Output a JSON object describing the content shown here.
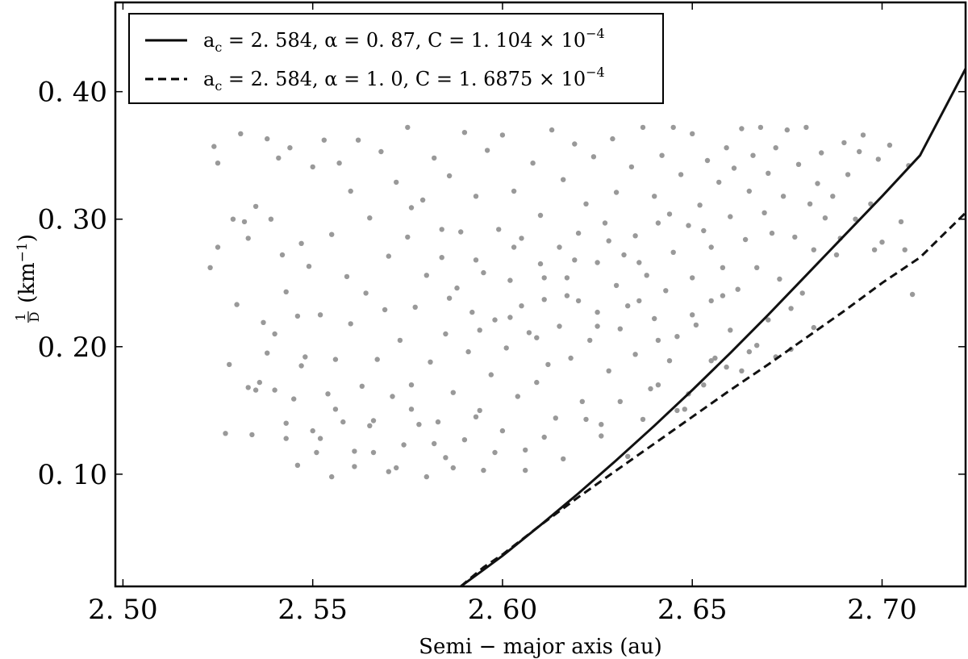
{
  "chart_data": {
    "type": "scatter",
    "xlabel": "Semi − major axis (au)",
    "ylabel": "km",
    "ylabel_prefix": "1",
    "ylabel_denominator": "D",
    "ylabel_superscript": "−1",
    "xlim": [
      2.498,
      2.722
    ],
    "ylim": [
      0.012,
      0.47
    ],
    "xticks": [
      2.5,
      2.55,
      2.6,
      2.65,
      2.7
    ],
    "xtick_labels": [
      "2. 50",
      "2. 55",
      "2. 60",
      "2. 65",
      "2. 70"
    ],
    "yticks": [
      0.1,
      0.2,
      0.3,
      0.4
    ],
    "ytick_labels": [
      "0. 10",
      "0. 20",
      "0. 30",
      "0. 40"
    ],
    "grid": false,
    "legend_position": "top-left",
    "series": [
      {
        "kind": "scatter",
        "color": "#999999",
        "points": [
          [
            2.523,
            0.262
          ],
          [
            2.524,
            0.357
          ],
          [
            2.525,
            0.344
          ],
          [
            2.525,
            0.278
          ],
          [
            2.527,
            0.132
          ],
          [
            2.528,
            0.186
          ],
          [
            2.529,
            0.3
          ],
          [
            2.53,
            0.233
          ],
          [
            2.531,
            0.367
          ],
          [
            2.532,
            0.298
          ],
          [
            2.533,
            0.285
          ],
          [
            2.534,
            0.131
          ],
          [
            2.535,
            0.166
          ],
          [
            2.535,
            0.31
          ],
          [
            2.536,
            0.172
          ],
          [
            2.537,
            0.219
          ],
          [
            2.538,
            0.363
          ],
          [
            2.539,
            0.3
          ],
          [
            2.54,
            0.166
          ],
          [
            2.54,
            0.21
          ],
          [
            2.541,
            0.348
          ],
          [
            2.542,
            0.272
          ],
          [
            2.543,
            0.128
          ],
          [
            2.543,
            0.243
          ],
          [
            2.544,
            0.356
          ],
          [
            2.545,
            0.159
          ],
          [
            2.546,
            0.107
          ],
          [
            2.546,
            0.224
          ],
          [
            2.547,
            0.281
          ],
          [
            2.548,
            0.192
          ],
          [
            2.549,
            0.263
          ],
          [
            2.55,
            0.134
          ],
          [
            2.55,
            0.341
          ],
          [
            2.551,
            0.117
          ],
          [
            2.552,
            0.225
          ],
          [
            2.553,
            0.362
          ],
          [
            2.554,
            0.163
          ],
          [
            2.555,
            0.098
          ],
          [
            2.555,
            0.288
          ],
          [
            2.556,
            0.19
          ],
          [
            2.557,
            0.344
          ],
          [
            2.558,
            0.141
          ],
          [
            2.559,
            0.255
          ],
          [
            2.56,
            0.322
          ],
          [
            2.56,
            0.218
          ],
          [
            2.561,
            0.106
          ],
          [
            2.562,
            0.362
          ],
          [
            2.563,
            0.169
          ],
          [
            2.564,
            0.242
          ],
          [
            2.565,
            0.138
          ],
          [
            2.565,
            0.301
          ],
          [
            2.566,
            0.117
          ],
          [
            2.567,
            0.19
          ],
          [
            2.568,
            0.353
          ],
          [
            2.569,
            0.229
          ],
          [
            2.57,
            0.102
          ],
          [
            2.57,
            0.271
          ],
          [
            2.571,
            0.161
          ],
          [
            2.572,
            0.329
          ],
          [
            2.573,
            0.205
          ],
          [
            2.574,
            0.123
          ],
          [
            2.575,
            0.286
          ],
          [
            2.575,
            0.372
          ],
          [
            2.576,
            0.17
          ],
          [
            2.577,
            0.231
          ],
          [
            2.578,
            0.139
          ],
          [
            2.579,
            0.315
          ],
          [
            2.58,
            0.098
          ],
          [
            2.58,
            0.256
          ],
          [
            2.581,
            0.188
          ],
          [
            2.582,
            0.348
          ],
          [
            2.583,
            0.141
          ],
          [
            2.584,
            0.27
          ],
          [
            2.585,
            0.21
          ],
          [
            2.585,
            0.113
          ],
          [
            2.586,
            0.334
          ],
          [
            2.587,
            0.164
          ],
          [
            2.588,
            0.246
          ],
          [
            2.589,
            0.29
          ],
          [
            2.59,
            0.127
          ],
          [
            2.59,
            0.368
          ],
          [
            2.591,
            0.196
          ],
          [
            2.592,
            0.227
          ],
          [
            2.593,
            0.318
          ],
          [
            2.594,
            0.15
          ],
          [
            2.595,
            0.103
          ],
          [
            2.595,
            0.258
          ],
          [
            2.596,
            0.354
          ],
          [
            2.597,
            0.178
          ],
          [
            2.598,
            0.221
          ],
          [
            2.599,
            0.292
          ],
          [
            2.6,
            0.134
          ],
          [
            2.6,
            0.366
          ],
          [
            2.601,
            0.199
          ],
          [
            2.602,
            0.252
          ],
          [
            2.603,
            0.322
          ],
          [
            2.604,
            0.161
          ],
          [
            2.605,
            0.232
          ],
          [
            2.605,
            0.285
          ],
          [
            2.606,
            0.119
          ],
          [
            2.607,
            0.211
          ],
          [
            2.608,
            0.344
          ],
          [
            2.609,
            0.172
          ],
          [
            2.61,
            0.265
          ],
          [
            2.61,
            0.303
          ],
          [
            2.611,
            0.237
          ],
          [
            2.612,
            0.186
          ],
          [
            2.613,
            0.37
          ],
          [
            2.614,
            0.144
          ],
          [
            2.615,
            0.278
          ],
          [
            2.615,
            0.216
          ],
          [
            2.616,
            0.331
          ],
          [
            2.617,
            0.254
          ],
          [
            2.618,
            0.191
          ],
          [
            2.619,
            0.359
          ],
          [
            2.62,
            0.236
          ],
          [
            2.62,
            0.289
          ],
          [
            2.621,
            0.157
          ],
          [
            2.622,
            0.312
          ],
          [
            2.623,
            0.205
          ],
          [
            2.624,
            0.349
          ],
          [
            2.625,
            0.266
          ],
          [
            2.625,
            0.227
          ],
          [
            2.626,
            0.139
          ],
          [
            2.627,
            0.297
          ],
          [
            2.628,
            0.181
          ],
          [
            2.629,
            0.363
          ],
          [
            2.63,
            0.248
          ],
          [
            2.63,
            0.321
          ],
          [
            2.631,
            0.214
          ],
          [
            2.632,
            0.272
          ],
          [
            2.633,
            0.114
          ],
          [
            2.634,
            0.341
          ],
          [
            2.635,
            0.194
          ],
          [
            2.635,
            0.287
          ],
          [
            2.636,
            0.236
          ],
          [
            2.637,
            0.372
          ],
          [
            2.638,
            0.256
          ],
          [
            2.639,
            0.167
          ],
          [
            2.64,
            0.318
          ],
          [
            2.64,
            0.222
          ],
          [
            2.641,
            0.297
          ],
          [
            2.642,
            0.35
          ],
          [
            2.643,
            0.244
          ],
          [
            2.644,
            0.189
          ],
          [
            2.645,
            0.372
          ],
          [
            2.645,
            0.274
          ],
          [
            2.646,
            0.208
          ],
          [
            2.647,
            0.335
          ],
          [
            2.648,
            0.151
          ],
          [
            2.649,
            0.295
          ],
          [
            2.65,
            0.254
          ],
          [
            2.65,
            0.367
          ],
          [
            2.651,
            0.217
          ],
          [
            2.652,
            0.311
          ],
          [
            2.653,
            0.17
          ],
          [
            2.654,
            0.346
          ],
          [
            2.655,
            0.278
          ],
          [
            2.655,
            0.236
          ],
          [
            2.656,
            0.191
          ],
          [
            2.657,
            0.329
          ],
          [
            2.658,
            0.262
          ],
          [
            2.659,
            0.356
          ],
          [
            2.66,
            0.302
          ],
          [
            2.66,
            0.213
          ],
          [
            2.661,
            0.34
          ],
          [
            2.662,
            0.245
          ],
          [
            2.663,
            0.371
          ],
          [
            2.664,
            0.284
          ],
          [
            2.665,
            0.322
          ],
          [
            2.665,
            0.196
          ],
          [
            2.666,
            0.35
          ],
          [
            2.667,
            0.262
          ],
          [
            2.668,
            0.372
          ],
          [
            2.669,
            0.305
          ],
          [
            2.67,
            0.336
          ],
          [
            2.67,
            0.221
          ],
          [
            2.671,
            0.289
          ],
          [
            2.672,
            0.356
          ],
          [
            2.673,
            0.253
          ],
          [
            2.674,
            0.318
          ],
          [
            2.675,
            0.37
          ],
          [
            2.676,
            0.198
          ],
          [
            2.677,
            0.286
          ],
          [
            2.678,
            0.343
          ],
          [
            2.679,
            0.242
          ],
          [
            2.68,
            0.372
          ],
          [
            2.681,
            0.312
          ],
          [
            2.682,
            0.276
          ],
          [
            2.683,
            0.328
          ],
          [
            2.684,
            0.352
          ],
          [
            2.685,
            0.301
          ],
          [
            2.687,
            0.318
          ],
          [
            2.688,
            0.272
          ],
          [
            2.69,
            0.36
          ],
          [
            2.691,
            0.335
          ],
          [
            2.693,
            0.3
          ],
          [
            2.694,
            0.353
          ],
          [
            2.695,
            0.366
          ],
          [
            2.697,
            0.312
          ],
          [
            2.699,
            0.347
          ],
          [
            2.7,
            0.282
          ],
          [
            2.702,
            0.358
          ],
          [
            2.705,
            0.298
          ],
          [
            2.707,
            0.342
          ],
          [
            2.708,
            0.241
          ],
          [
            2.706,
            0.276
          ],
          [
            2.698,
            0.276
          ],
          [
            2.689,
            0.285
          ],
          [
            2.682,
            0.215
          ],
          [
            2.676,
            0.23
          ],
          [
            2.672,
            0.192
          ],
          [
            2.667,
            0.201
          ],
          [
            2.663,
            0.181
          ],
          [
            2.659,
            0.184
          ],
          [
            2.655,
            0.189
          ],
          [
            2.649,
            0.163
          ],
          [
            2.646,
            0.15
          ],
          [
            2.641,
            0.17
          ],
          [
            2.637,
            0.143
          ],
          [
            2.631,
            0.157
          ],
          [
            2.626,
            0.13
          ],
          [
            2.622,
            0.143
          ],
          [
            2.616,
            0.112
          ],
          [
            2.611,
            0.129
          ],
          [
            2.606,
            0.103
          ],
          [
            2.598,
            0.117
          ],
          [
            2.593,
            0.145
          ],
          [
            2.587,
            0.105
          ],
          [
            2.582,
            0.124
          ],
          [
            2.576,
            0.151
          ],
          [
            2.572,
            0.105
          ],
          [
            2.566,
            0.142
          ],
          [
            2.561,
            0.118
          ],
          [
            2.556,
            0.151
          ],
          [
            2.552,
            0.128
          ],
          [
            2.547,
            0.185
          ],
          [
            2.543,
            0.14
          ],
          [
            2.538,
            0.195
          ],
          [
            2.533,
            0.168
          ],
          [
            2.576,
            0.309
          ],
          [
            2.584,
            0.292
          ],
          [
            2.593,
            0.268
          ],
          [
            2.603,
            0.278
          ],
          [
            2.611,
            0.254
          ],
          [
            2.619,
            0.268
          ],
          [
            2.628,
            0.283
          ],
          [
            2.636,
            0.266
          ],
          [
            2.644,
            0.304
          ],
          [
            2.653,
            0.291
          ],
          [
            2.586,
            0.238
          ],
          [
            2.594,
            0.213
          ],
          [
            2.602,
            0.223
          ],
          [
            2.609,
            0.207
          ],
          [
            2.617,
            0.24
          ],
          [
            2.625,
            0.216
          ],
          [
            2.633,
            0.232
          ],
          [
            2.641,
            0.205
          ],
          [
            2.65,
            0.225
          ],
          [
            2.658,
            0.24
          ]
        ]
      },
      {
        "kind": "line",
        "name": "a_c = 2.584, α = 0.87, C = 1.104 × 10^-4",
        "style": "solid",
        "color": "#111111",
        "x": [
          2.589,
          2.595,
          2.6,
          2.61,
          2.62,
          2.63,
          2.64,
          2.65,
          2.66,
          2.67,
          2.68,
          2.69,
          2.7,
          2.71,
          2.722
        ],
        "y": [
          0.012,
          0.025,
          0.036,
          0.06,
          0.085,
          0.111,
          0.138,
          0.166,
          0.195,
          0.225,
          0.256,
          0.287,
          0.318,
          0.35,
          0.418
        ]
      },
      {
        "kind": "line",
        "name": "a_c = 2.584, α = 1.0, C = 1.6875 × 10^-4",
        "style": "dashed",
        "color": "#111111",
        "x": [
          2.589,
          2.595,
          2.6,
          2.61,
          2.62,
          2.63,
          2.64,
          2.65,
          2.66,
          2.67,
          2.68,
          2.69,
          2.7,
          2.71,
          2.722
        ],
        "y": [
          0.012,
          0.027,
          0.037,
          0.06,
          0.082,
          0.103,
          0.124,
          0.145,
          0.166,
          0.186,
          0.207,
          0.228,
          0.25,
          0.27,
          0.305
        ]
      }
    ],
    "legend": [
      {
        "style": "solid",
        "label_prefix": "a",
        "label_sub": "c",
        "label_rest": " = 2. 584,  α  =  0. 87,  C = 1. 104 × 10",
        "label_sup": "−4"
      },
      {
        "style": "dashed",
        "label_prefix": "a",
        "label_sub": "c",
        "label_rest": " = 2. 584,  α  =  1. 0,  C = 1. 6875 × 10",
        "label_sup": "−4"
      }
    ]
  }
}
